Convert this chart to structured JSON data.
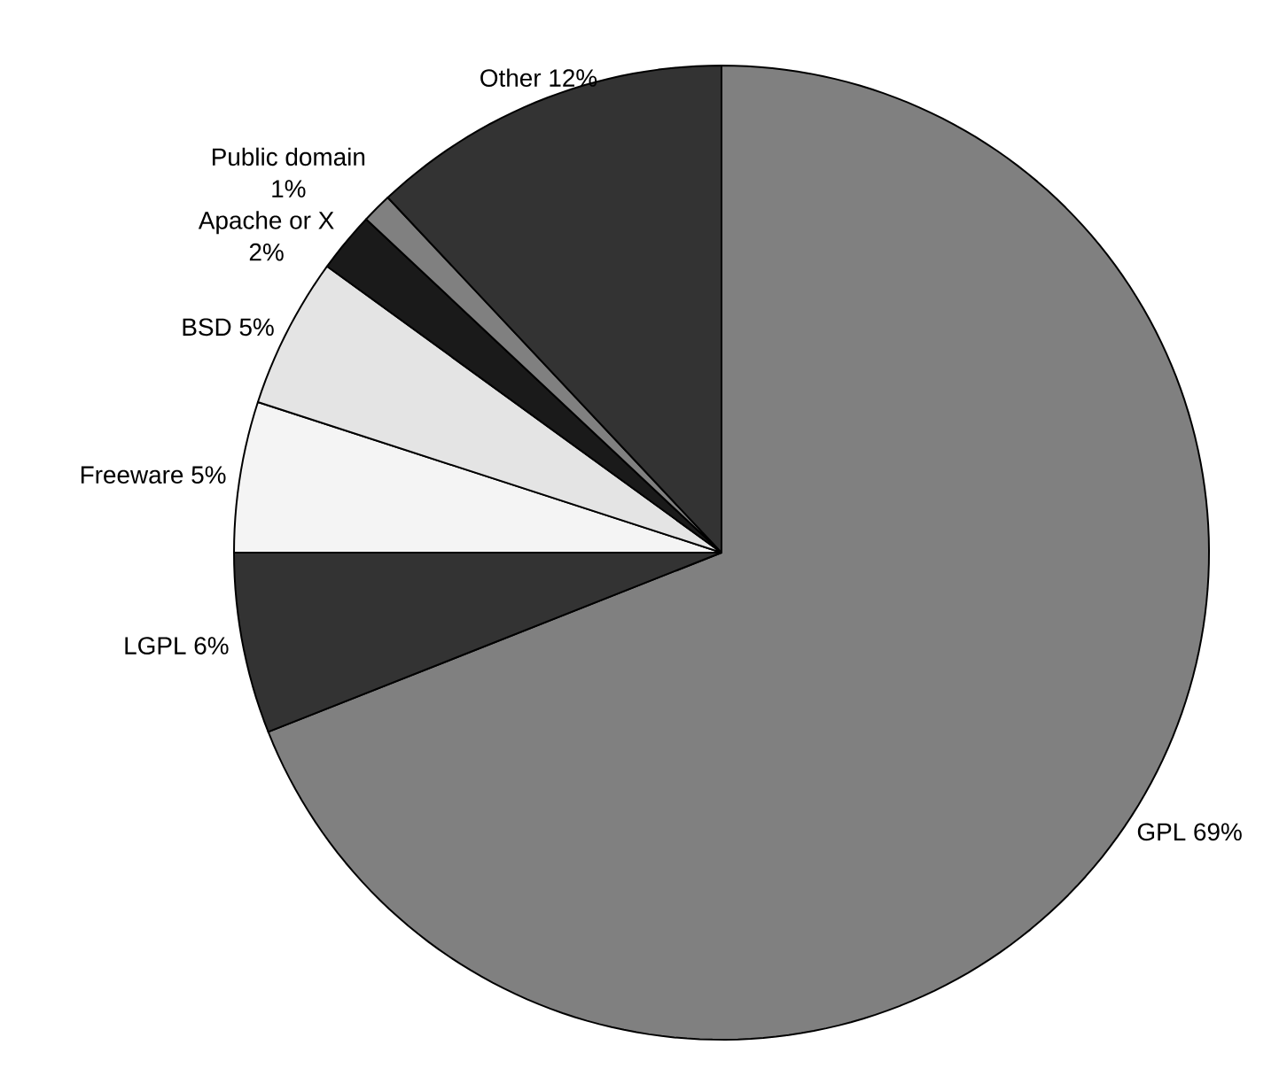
{
  "chart_data": {
    "type": "pie",
    "categories": [
      "GPL",
      "LGPL",
      "Freeware",
      "BSD",
      "Apache or X",
      "Public domain",
      "Other"
    ],
    "values": [
      69,
      6,
      5,
      5,
      2,
      1,
      12
    ],
    "value_labels": [
      "69%",
      "6%",
      "5%",
      "5%",
      "2%",
      "1%",
      "12%"
    ],
    "colors": [
      "#808080",
      "#333333",
      "#f4f4f4",
      "#e4e4e4",
      "#1a1a1a",
      "#808080",
      "#333333"
    ]
  }
}
